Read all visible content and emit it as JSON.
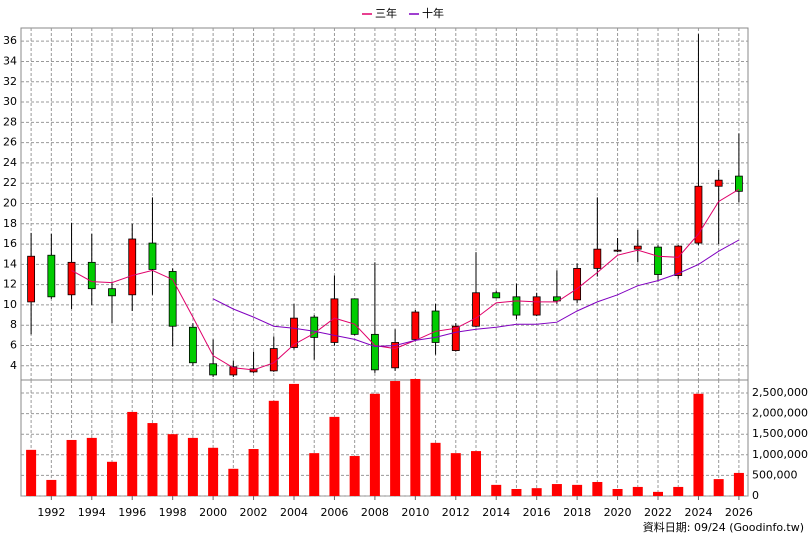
{
  "chart_data": [
    {
      "type": "candlestick",
      "x": [
        1991,
        1992,
        1993,
        1994,
        1995,
        1996,
        1997,
        1998,
        1999,
        2000,
        2001,
        2002,
        2003,
        2004,
        2005,
        2006,
        2007,
        2008,
        2009,
        2010,
        2011,
        2012,
        2013,
        2014,
        2015,
        2016,
        2017,
        2018,
        2019,
        2020,
        2021,
        2022,
        2023,
        2024,
        2025,
        2026
      ],
      "open": [
        10.3,
        14.9,
        11.0,
        14.2,
        11.6,
        11.0,
        16.1,
        13.3,
        7.8,
        4.2,
        3.1,
        3.4,
        3.5,
        5.8,
        8.8,
        6.3,
        10.6,
        7.1,
        3.8,
        6.6,
        9.4,
        5.5,
        7.9,
        11.2,
        10.8,
        9.0,
        10.8,
        10.5,
        13.6,
        15.3,
        15.5,
        15.7,
        12.9,
        16.1,
        21.7,
        22.7
      ],
      "high": [
        17.1,
        17.0,
        18.1,
        17.0,
        12.3,
        18.0,
        20.6,
        13.6,
        8.2,
        6.6,
        4.5,
        5.4,
        6.9,
        10.1,
        9.0,
        12.9,
        10.6,
        14.2,
        7.6,
        9.5,
        10.1,
        8.2,
        15.2,
        11.4,
        12.1,
        11.2,
        13.4,
        14.1,
        20.6,
        16.6,
        17.4,
        15.9,
        15.9,
        36.7,
        23.3,
        26.9
      ],
      "low": [
        7.1,
        10.6,
        9.6,
        10.0,
        8.2,
        9.4,
        11.0,
        5.9,
        4.0,
        2.9,
        2.9,
        3.3,
        3.4,
        5.6,
        4.6,
        6.0,
        7.0,
        3.3,
        3.5,
        6.4,
        5.1,
        5.4,
        7.8,
        10.7,
        8.6,
        8.9,
        10.1,
        10.2,
        12.8,
        15.2,
        14.2,
        12.3,
        12.6,
        15.9,
        16.0,
        20.1
      ],
      "close": [
        14.8,
        10.8,
        14.2,
        11.6,
        10.9,
        16.5,
        13.5,
        7.9,
        4.3,
        3.1,
        3.9,
        3.7,
        5.7,
        8.7,
        6.8,
        10.6,
        7.1,
        3.6,
        6.3,
        9.3,
        6.3,
        7.9,
        11.2,
        10.7,
        9.0,
        10.8,
        10.4,
        13.6,
        15.5,
        15.4,
        15.8,
        13.0,
        15.8,
        21.7,
        22.3,
        21.2
      ],
      "up_color": "#ff0000",
      "down_color": "#00cc00",
      "series": [
        {
          "name": "三年",
          "color": "#e0006a",
          "values": [
            null,
            null,
            13.4,
            12.3,
            12.2,
            12.9,
            13.4,
            12.5,
            8.8,
            5.0,
            3.8,
            3.6,
            4.3,
            6.1,
            7.2,
            8.7,
            8.1,
            6.0,
            5.7,
            6.5,
            7.4,
            7.7,
            8.7,
            10.2,
            10.4,
            10.3,
            10.3,
            11.6,
            13.2,
            14.9,
            15.4,
            14.8,
            14.7,
            17.0,
            20.2,
            21.4
          ]
        },
        {
          "name": "十年",
          "color": "#8000c0",
          "values": [
            null,
            null,
            null,
            null,
            null,
            null,
            null,
            null,
            null,
            10.6,
            9.6,
            8.8,
            7.9,
            7.7,
            7.4,
            7.0,
            6.6,
            5.9,
            6.0,
            6.5,
            6.8,
            7.3,
            7.6,
            7.8,
            8.1,
            8.1,
            8.3,
            9.4,
            10.3,
            11.0,
            11.9,
            12.4,
            13.1,
            14.0,
            15.3,
            16.4
          ]
        }
      ],
      "xlim": [
        1990.5,
        2026.45
      ],
      "ylim": [
        2.6,
        37.3
      ],
      "yticks": [
        4,
        6,
        8,
        10,
        12,
        14,
        16,
        18,
        20,
        22,
        24,
        26,
        28,
        30,
        32,
        34,
        36
      ],
      "grid": true
    },
    {
      "type": "bar",
      "x": [
        1991,
        1992,
        1993,
        1994,
        1995,
        1996,
        1997,
        1998,
        1999,
        2000,
        2001,
        2002,
        2003,
        2004,
        2005,
        2006,
        2007,
        2008,
        2009,
        2010,
        2011,
        2012,
        2013,
        2014,
        2015,
        2016,
        2017,
        2018,
        2019,
        2020,
        2021,
        2022,
        2023,
        2024,
        2025,
        2026
      ],
      "values": [
        1120000,
        390000,
        1360000,
        1410000,
        830000,
        2040000,
        1770000,
        1500000,
        1410000,
        1170000,
        660000,
        1140000,
        2310000,
        2720000,
        1040000,
        1920000,
        970000,
        2480000,
        2790000,
        2840000,
        1290000,
        1040000,
        1090000,
        270000,
        170000,
        190000,
        290000,
        270000,
        340000,
        170000,
        220000,
        100000,
        220000,
        2480000,
        410000,
        560000
      ],
      "color": "#ff0000",
      "xlim": [
        1990.5,
        2026.45
      ],
      "xticks": [
        1992,
        1994,
        1996,
        1998,
        2000,
        2002,
        2004,
        2006,
        2008,
        2010,
        2012,
        2014,
        2016,
        2018,
        2020,
        2022,
        2024,
        2026
      ],
      "ylim": [
        0,
        2815000
      ],
      "yticks": [
        0,
        {
          "value": 500000,
          "label": "500,000"
        },
        {
          "value": 1000000,
          "label": "1,000,000"
        },
        {
          "value": 1500000,
          "label": "1,500,000"
        },
        {
          "value": 2000000,
          "label": "2,000,000"
        },
        {
          "value": 2500000,
          "label": "2,500,000"
        }
      ],
      "grid": true,
      "source": "資料日期: 09/24 (Goodinfo.tw)"
    }
  ]
}
